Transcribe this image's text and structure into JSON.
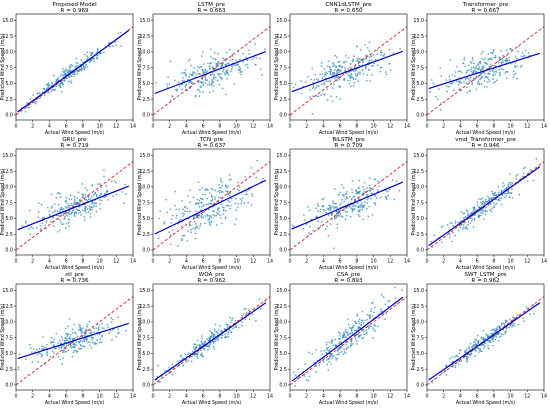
{
  "figure": {
    "panel_count": 12
  },
  "chart_data": [
    {
      "type": "scatter",
      "title": "Proposed Model",
      "r_label": "R = 0.969",
      "r": 0.969,
      "xlabel": "Actual Wind Speed (m/s)",
      "ylabel": "Predicted Wind Speed (m/s)",
      "xlim": [
        0,
        14
      ],
      "ylim": [
        -0.8,
        16
      ],
      "xticks": [
        0,
        2,
        4,
        6,
        8,
        10,
        12,
        14
      ],
      "yticks": [
        0.0,
        2.5,
        5.0,
        7.5,
        10.0,
        12.5,
        15.0
      ],
      "point_color": "#3a8fc0",
      "fit_line": {
        "intercept": 0.3,
        "slope": 0.97,
        "color": "#0000cc"
      },
      "identity_line": {
        "slope": 1,
        "color": "#dd2222",
        "style": "dashed"
      },
      "point_cloud": {
        "x_range": [
          0.2,
          13.5
        ],
        "spread": 0.8
      }
    },
    {
      "type": "scatter",
      "title": "LSTM_pre",
      "r_label": "R = 0.663",
      "r": 0.663,
      "xlabel": "Actual Wind Speed (m/s)",
      "ylabel": "Predicted Wind Speed (m/s)",
      "xlim": [
        0,
        14
      ],
      "ylim": [
        -0.8,
        16
      ],
      "xticks": [
        0,
        2,
        4,
        6,
        8,
        10,
        12,
        14
      ],
      "yticks": [
        0.0,
        2.5,
        5.0,
        7.5,
        10.0,
        12.5,
        15.0
      ],
      "point_color": "#3a8fc0",
      "fit_line": {
        "intercept": 3.3,
        "slope": 0.5,
        "color": "#0000cc"
      },
      "identity_line": {
        "slope": 1,
        "color": "#dd2222",
        "style": "dashed"
      },
      "point_cloud": {
        "x_range": [
          0.2,
          13.5
        ],
        "spread": 2.1
      }
    },
    {
      "type": "scatter",
      "title": "CNN1dLSTM_pre",
      "r_label": "R = 0.650",
      "r": 0.65,
      "xlabel": "Actual Wind Speed (m/s)",
      "ylabel": "Predicted Wind Speed (m/s)",
      "xlim": [
        0,
        14
      ],
      "ylim": [
        -0.8,
        16
      ],
      "xticks": [
        0,
        2,
        4,
        6,
        8,
        10,
        12,
        14
      ],
      "yticks": [
        0.0,
        2.5,
        5.0,
        7.5,
        10.0,
        12.5,
        15.0
      ],
      "point_color": "#3a8fc0",
      "fit_line": {
        "intercept": 3.6,
        "slope": 0.48,
        "color": "#0000cc"
      },
      "identity_line": {
        "slope": 1,
        "color": "#dd2222",
        "style": "dashed"
      },
      "point_cloud": {
        "x_range": [
          0.2,
          13.5
        ],
        "spread": 2.2
      }
    },
    {
      "type": "scatter",
      "title": "Transformer_pre",
      "r_label": "R = 0.667",
      "r": 0.667,
      "xlabel": "Actual Wind Speed (m/s)",
      "ylabel": "Predicted Wind Speed (m/s)",
      "xlim": [
        0,
        14
      ],
      "ylim": [
        -0.8,
        16
      ],
      "xticks": [
        0,
        2,
        4,
        6,
        8,
        10,
        12,
        14
      ],
      "yticks": [
        0.0,
        2.5,
        5.0,
        7.5,
        10.0,
        12.5,
        15.0
      ],
      "point_color": "#3a8fc0",
      "fit_line": {
        "intercept": 4.1,
        "slope": 0.42,
        "color": "#0000cc"
      },
      "identity_line": {
        "slope": 1,
        "color": "#dd2222",
        "style": "dashed"
      },
      "point_cloud": {
        "x_range": [
          0.2,
          13.5
        ],
        "spread": 1.9
      }
    },
    {
      "type": "scatter",
      "title": "GRU_pre",
      "r_label": "R = 0.719",
      "r": 0.719,
      "xlabel": "Actual Wind Speed (m/s)",
      "ylabel": "Predicted Wind Speed (m/s)",
      "xlim": [
        0,
        14
      ],
      "ylim": [
        -0.8,
        16
      ],
      "xticks": [
        0,
        2,
        4,
        6,
        8,
        10,
        12,
        14
      ],
      "yticks": [
        0.0,
        2.5,
        5.0,
        7.5,
        10.0,
        12.5,
        15.0
      ],
      "point_color": "#3a8fc0",
      "fit_line": {
        "intercept": 3.1,
        "slope": 0.52,
        "color": "#0000cc"
      },
      "identity_line": {
        "slope": 1,
        "color": "#dd2222",
        "style": "dashed"
      },
      "point_cloud": {
        "x_range": [
          0.2,
          13.5
        ],
        "spread": 1.8
      }
    },
    {
      "type": "scatter",
      "title": "TCN_pre",
      "r_label": "R = 0.637",
      "r": 0.637,
      "xlabel": "Actual Wind Speed (m/s)",
      "ylabel": "Predicted Wind Speed (m/s)",
      "xlim": [
        0,
        14
      ],
      "ylim": [
        -0.8,
        16
      ],
      "xticks": [
        0,
        2,
        4,
        6,
        8,
        10,
        12,
        14
      ],
      "yticks": [
        0.0,
        2.5,
        5.0,
        7.5,
        10.0,
        12.5,
        15.0
      ],
      "point_color": "#3a8fc0",
      "fit_line": {
        "intercept": 2.4,
        "slope": 0.64,
        "color": "#0000cc"
      },
      "identity_line": {
        "slope": 1,
        "color": "#dd2222",
        "style": "dashed"
      },
      "point_cloud": {
        "x_range": [
          0.2,
          13.5
        ],
        "spread": 2.6
      }
    },
    {
      "type": "scatter",
      "title": "BiLSTM_pre",
      "r_label": "R = 0.709",
      "r": 0.709,
      "xlabel": "Actual Wind Speed (m/s)",
      "ylabel": "Predicted Wind Speed (m/s)",
      "xlim": [
        0,
        14
      ],
      "ylim": [
        -0.8,
        16
      ],
      "xticks": [
        0,
        2,
        4,
        6,
        8,
        10,
        12,
        14
      ],
      "yticks": [
        0.0,
        2.5,
        5.0,
        7.5,
        10.0,
        12.5,
        15.0
      ],
      "point_color": "#3a8fc0",
      "fit_line": {
        "intercept": 3.2,
        "slope": 0.56,
        "color": "#0000cc"
      },
      "identity_line": {
        "slope": 1,
        "color": "#dd2222",
        "style": "dashed"
      },
      "point_cloud": {
        "x_range": [
          0.2,
          13.5
        ],
        "spread": 2.0
      }
    },
    {
      "type": "scatter",
      "title": "vmd_Transformer_pre",
      "r_label": "R = 0.946",
      "r": 0.946,
      "xlabel": "Actual Wind Speed (m/s)",
      "ylabel": "Predicted Wind Speed (m/s)",
      "xlim": [
        0,
        14
      ],
      "ylim": [
        -0.8,
        16
      ],
      "xticks": [
        0,
        2,
        4,
        6,
        8,
        10,
        12,
        14
      ],
      "yticks": [
        0.0,
        2.5,
        5.0,
        7.5,
        10.0,
        12.5,
        15.0
      ],
      "point_color": "#3a8fc0",
      "fit_line": {
        "intercept": 0.5,
        "slope": 0.94,
        "color": "#0000cc"
      },
      "identity_line": {
        "slope": 1,
        "color": "#dd2222",
        "style": "dashed"
      },
      "point_cloud": {
        "x_range": [
          0.2,
          13.5
        ],
        "spread": 1.1
      }
    },
    {
      "type": "scatter",
      "title": "stl_pre",
      "r_label": "R = 0.736",
      "r": 0.736,
      "xlabel": "Actual Wind Speed (m/s)",
      "ylabel": "Predicted Wind Speed (m/s)",
      "xlim": [
        0,
        14
      ],
      "ylim": [
        -0.8,
        16
      ],
      "xticks": [
        0,
        2,
        4,
        6,
        8,
        10,
        12,
        14
      ],
      "yticks": [
        0.0,
        2.5,
        5.0,
        7.5,
        10.0,
        12.5,
        15.0
      ],
      "point_color": "#3a8fc0",
      "fit_line": {
        "intercept": 4.1,
        "slope": 0.42,
        "color": "#0000cc"
      },
      "identity_line": {
        "slope": 1,
        "color": "#dd2222",
        "style": "dashed"
      },
      "point_cloud": {
        "x_range": [
          0.2,
          13.5
        ],
        "spread": 1.5
      }
    },
    {
      "type": "scatter",
      "title": "WOA_pre",
      "r_label": "R = 0.962",
      "r": 0.962,
      "xlabel": "Actual Wind Speed (m/s)",
      "ylabel": "Predicted Wind Speed (m/s)",
      "xlim": [
        0,
        14
      ],
      "ylim": [
        -0.8,
        16
      ],
      "xticks": [
        0,
        2,
        4,
        6,
        8,
        10,
        12,
        14
      ],
      "yticks": [
        0.0,
        2.5,
        5.0,
        7.5,
        10.0,
        12.5,
        15.0
      ],
      "point_color": "#3a8fc0",
      "fit_line": {
        "intercept": 0.6,
        "slope": 0.92,
        "color": "#0000cc"
      },
      "identity_line": {
        "slope": 1,
        "color": "#dd2222",
        "style": "dashed"
      },
      "point_cloud": {
        "x_range": [
          0.2,
          13.5
        ],
        "spread": 0.9
      }
    },
    {
      "type": "scatter",
      "title": "CSA_pre",
      "r_label": "R = 0.893",
      "r": 0.893,
      "xlabel": "Actual Wind Speed (m/s)",
      "ylabel": "Predicted Wind Speed (m/s)",
      "xlim": [
        0,
        14
      ],
      "ylim": [
        -0.8,
        16
      ],
      "xticks": [
        0,
        2,
        4,
        6,
        8,
        10,
        12,
        14
      ],
      "yticks": [
        0.0,
        2.5,
        5.0,
        7.5,
        10.0,
        12.5,
        15.0
      ],
      "point_color": "#3a8fc0",
      "fit_line": {
        "intercept": 0.4,
        "slope": 1.0,
        "color": "#0000cc"
      },
      "identity_line": {
        "slope": 1,
        "color": "#dd2222",
        "style": "dashed"
      },
      "point_cloud": {
        "x_range": [
          0.2,
          13.5
        ],
        "spread": 1.6
      }
    },
    {
      "type": "scatter",
      "title": "SWT_LSTM_pre",
      "r_label": "R = 0.962",
      "r": 0.962,
      "xlabel": "Actual Wind Speed (m/s)",
      "ylabel": "Predicted Wind Speed (m/s)",
      "xlim": [
        0,
        14
      ],
      "ylim": [
        -0.8,
        16
      ],
      "xticks": [
        0,
        2,
        4,
        6,
        8,
        10,
        12,
        14
      ],
      "yticks": [
        0.0,
        2.5,
        5.0,
        7.5,
        10.0,
        12.5,
        15.0
      ],
      "point_color": "#3a8fc0",
      "fit_line": {
        "intercept": 0.6,
        "slope": 0.92,
        "color": "#0000cc"
      },
      "identity_line": {
        "slope": 1,
        "color": "#dd2222",
        "style": "dashed"
      },
      "point_cloud": {
        "x_range": [
          0.2,
          13.5
        ],
        "spread": 0.9
      }
    }
  ]
}
